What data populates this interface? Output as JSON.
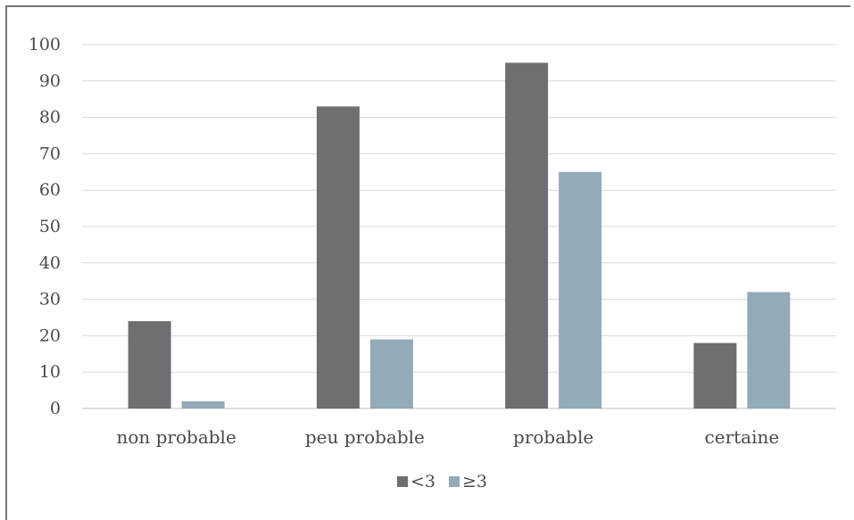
{
  "chart_data": {
    "type": "bar",
    "title": "",
    "xlabel": "",
    "ylabel": "",
    "categories": [
      "non probable",
      "peu probable",
      "probable",
      "certaine"
    ],
    "series": [
      {
        "name": "<3",
        "values": [
          24,
          83,
          95,
          18
        ],
        "color": "#6e6e73"
      },
      {
        "name": "≥3",
        "values": [
          2,
          19,
          65,
          32
        ],
        "color": "#93aab8"
      }
    ],
    "ylim": [
      0,
      100
    ],
    "yticks": [
      0,
      10,
      20,
      30,
      40,
      50,
      60,
      70,
      80,
      90,
      100
    ],
    "grid": true,
    "legend_position": "bottom"
  },
  "colors": {
    "gridline": "#d9d9d9",
    "axis": "#bfbfbf",
    "frame": "#767676"
  }
}
